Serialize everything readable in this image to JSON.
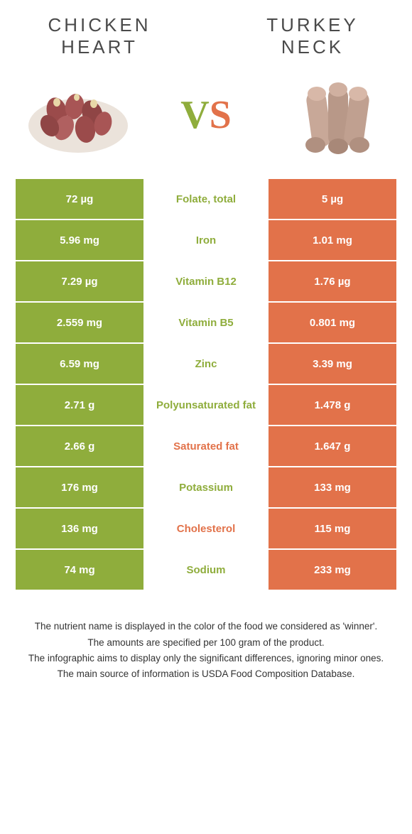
{
  "colors": {
    "green": "#8fad3c",
    "orange": "#e2724a",
    "white": "#ffffff",
    "text": "#333333"
  },
  "header": {
    "left_title_line1": "CHICKEN",
    "left_title_line2": "HEART",
    "right_title_line1": "TURKEY",
    "right_title_line2": "NECK",
    "vs_v": "V",
    "vs_s": "S"
  },
  "rows": [
    {
      "left": "72 µg",
      "label": "Folate, total",
      "right": "5 µg",
      "winner": "green"
    },
    {
      "left": "5.96 mg",
      "label": "Iron",
      "right": "1.01 mg",
      "winner": "green"
    },
    {
      "left": "7.29 µg",
      "label": "Vitamin B12",
      "right": "1.76 µg",
      "winner": "green"
    },
    {
      "left": "2.559 mg",
      "label": "Vitamin B5",
      "right": "0.801 mg",
      "winner": "green"
    },
    {
      "left": "6.59 mg",
      "label": "Zinc",
      "right": "3.39 mg",
      "winner": "green"
    },
    {
      "left": "2.71 g",
      "label": "Polyunsaturated fat",
      "right": "1.478 g",
      "winner": "green"
    },
    {
      "left": "2.66 g",
      "label": "Saturated fat",
      "right": "1.647 g",
      "winner": "orange"
    },
    {
      "left": "176 mg",
      "label": "Potassium",
      "right": "133 mg",
      "winner": "green"
    },
    {
      "left": "136 mg",
      "label": "Cholesterol",
      "right": "115 mg",
      "winner": "orange"
    },
    {
      "left": "74 mg",
      "label": "Sodium",
      "right": "233 mg",
      "winner": "green"
    }
  ],
  "footer": {
    "line1": "The nutrient name is displayed in the color of the food we considered as 'winner'.",
    "line2": "The amounts are specified per 100 gram of the product.",
    "line3": "The infographic aims to display only the significant differences, ignoring minor ones.",
    "line4": "The main source of information is USDA Food Composition Database."
  }
}
